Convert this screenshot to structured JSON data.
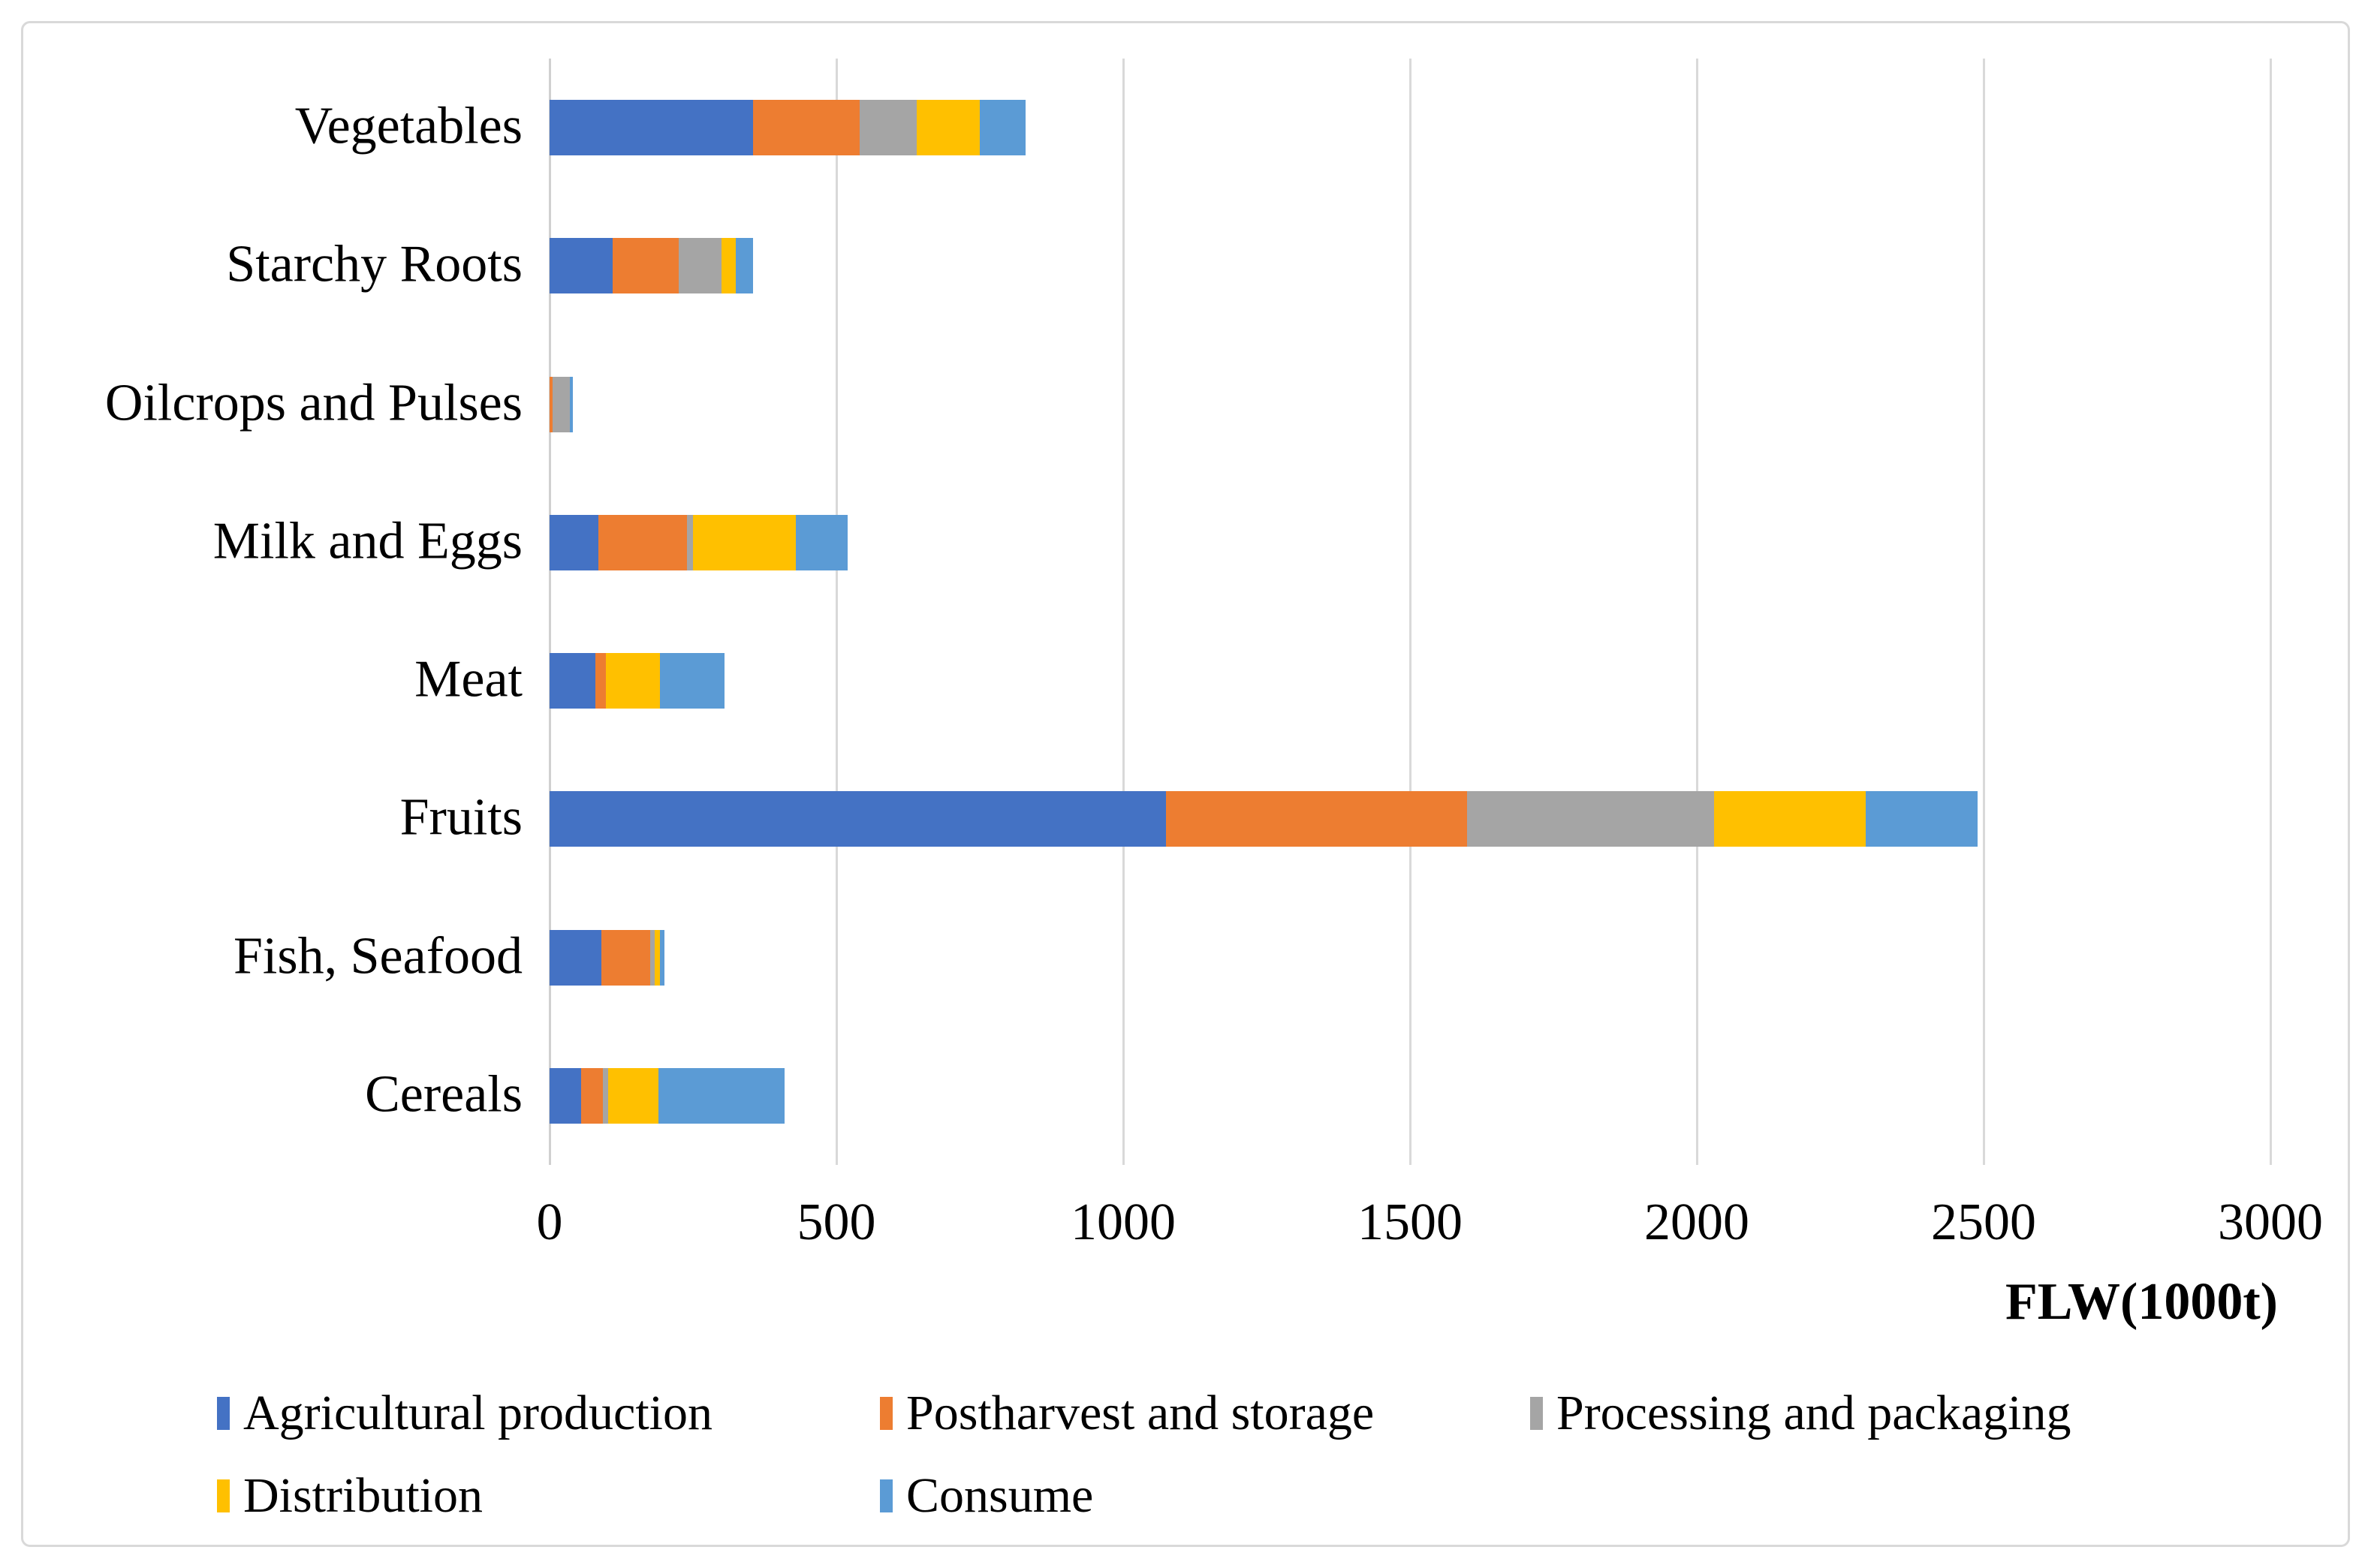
{
  "chart_data": {
    "type": "bar",
    "orientation": "horizontal-stacked",
    "title": "",
    "xlabel": "FLW(1000t)",
    "ylabel": "",
    "xlim": [
      0,
      3000
    ],
    "xticks": [
      0,
      500,
      1000,
      1500,
      2000,
      2500,
      3000
    ],
    "grid": "vertical",
    "legend_position": "bottom",
    "categories": [
      "Vegetables",
      "Starchy Roots",
      "Oilcrops and Pulses",
      "Milk and Eggs",
      "Meat",
      "Fruits",
      "Fish, Seafood",
      "Cereals"
    ],
    "series": [
      {
        "name": "Agricultural production",
        "color": "#4472C4",
        "values": [
          355,
          110,
          0,
          85,
          80,
          1075,
          90,
          55
        ]
      },
      {
        "name": "Postharvest and storage",
        "color": "#ED7D31",
        "values": [
          185,
          115,
          5,
          155,
          18,
          525,
          85,
          38
        ]
      },
      {
        "name": "Processing and packaging",
        "color": "#A5A5A5",
        "values": [
          100,
          75,
          30,
          10,
          0,
          430,
          8,
          9
        ]
      },
      {
        "name": "Distribution",
        "color": "#FFC000",
        "values": [
          110,
          25,
          0,
          180,
          95,
          265,
          10,
          88
        ]
      },
      {
        "name": "Consume",
        "color": "#5B9BD5",
        "values": [
          80,
          30,
          5,
          90,
          112,
          195,
          7,
          220
        ]
      }
    ],
    "colors": {
      "grid": "#D9D9D9",
      "text": "#000000",
      "background": "#FFFFFF"
    }
  }
}
